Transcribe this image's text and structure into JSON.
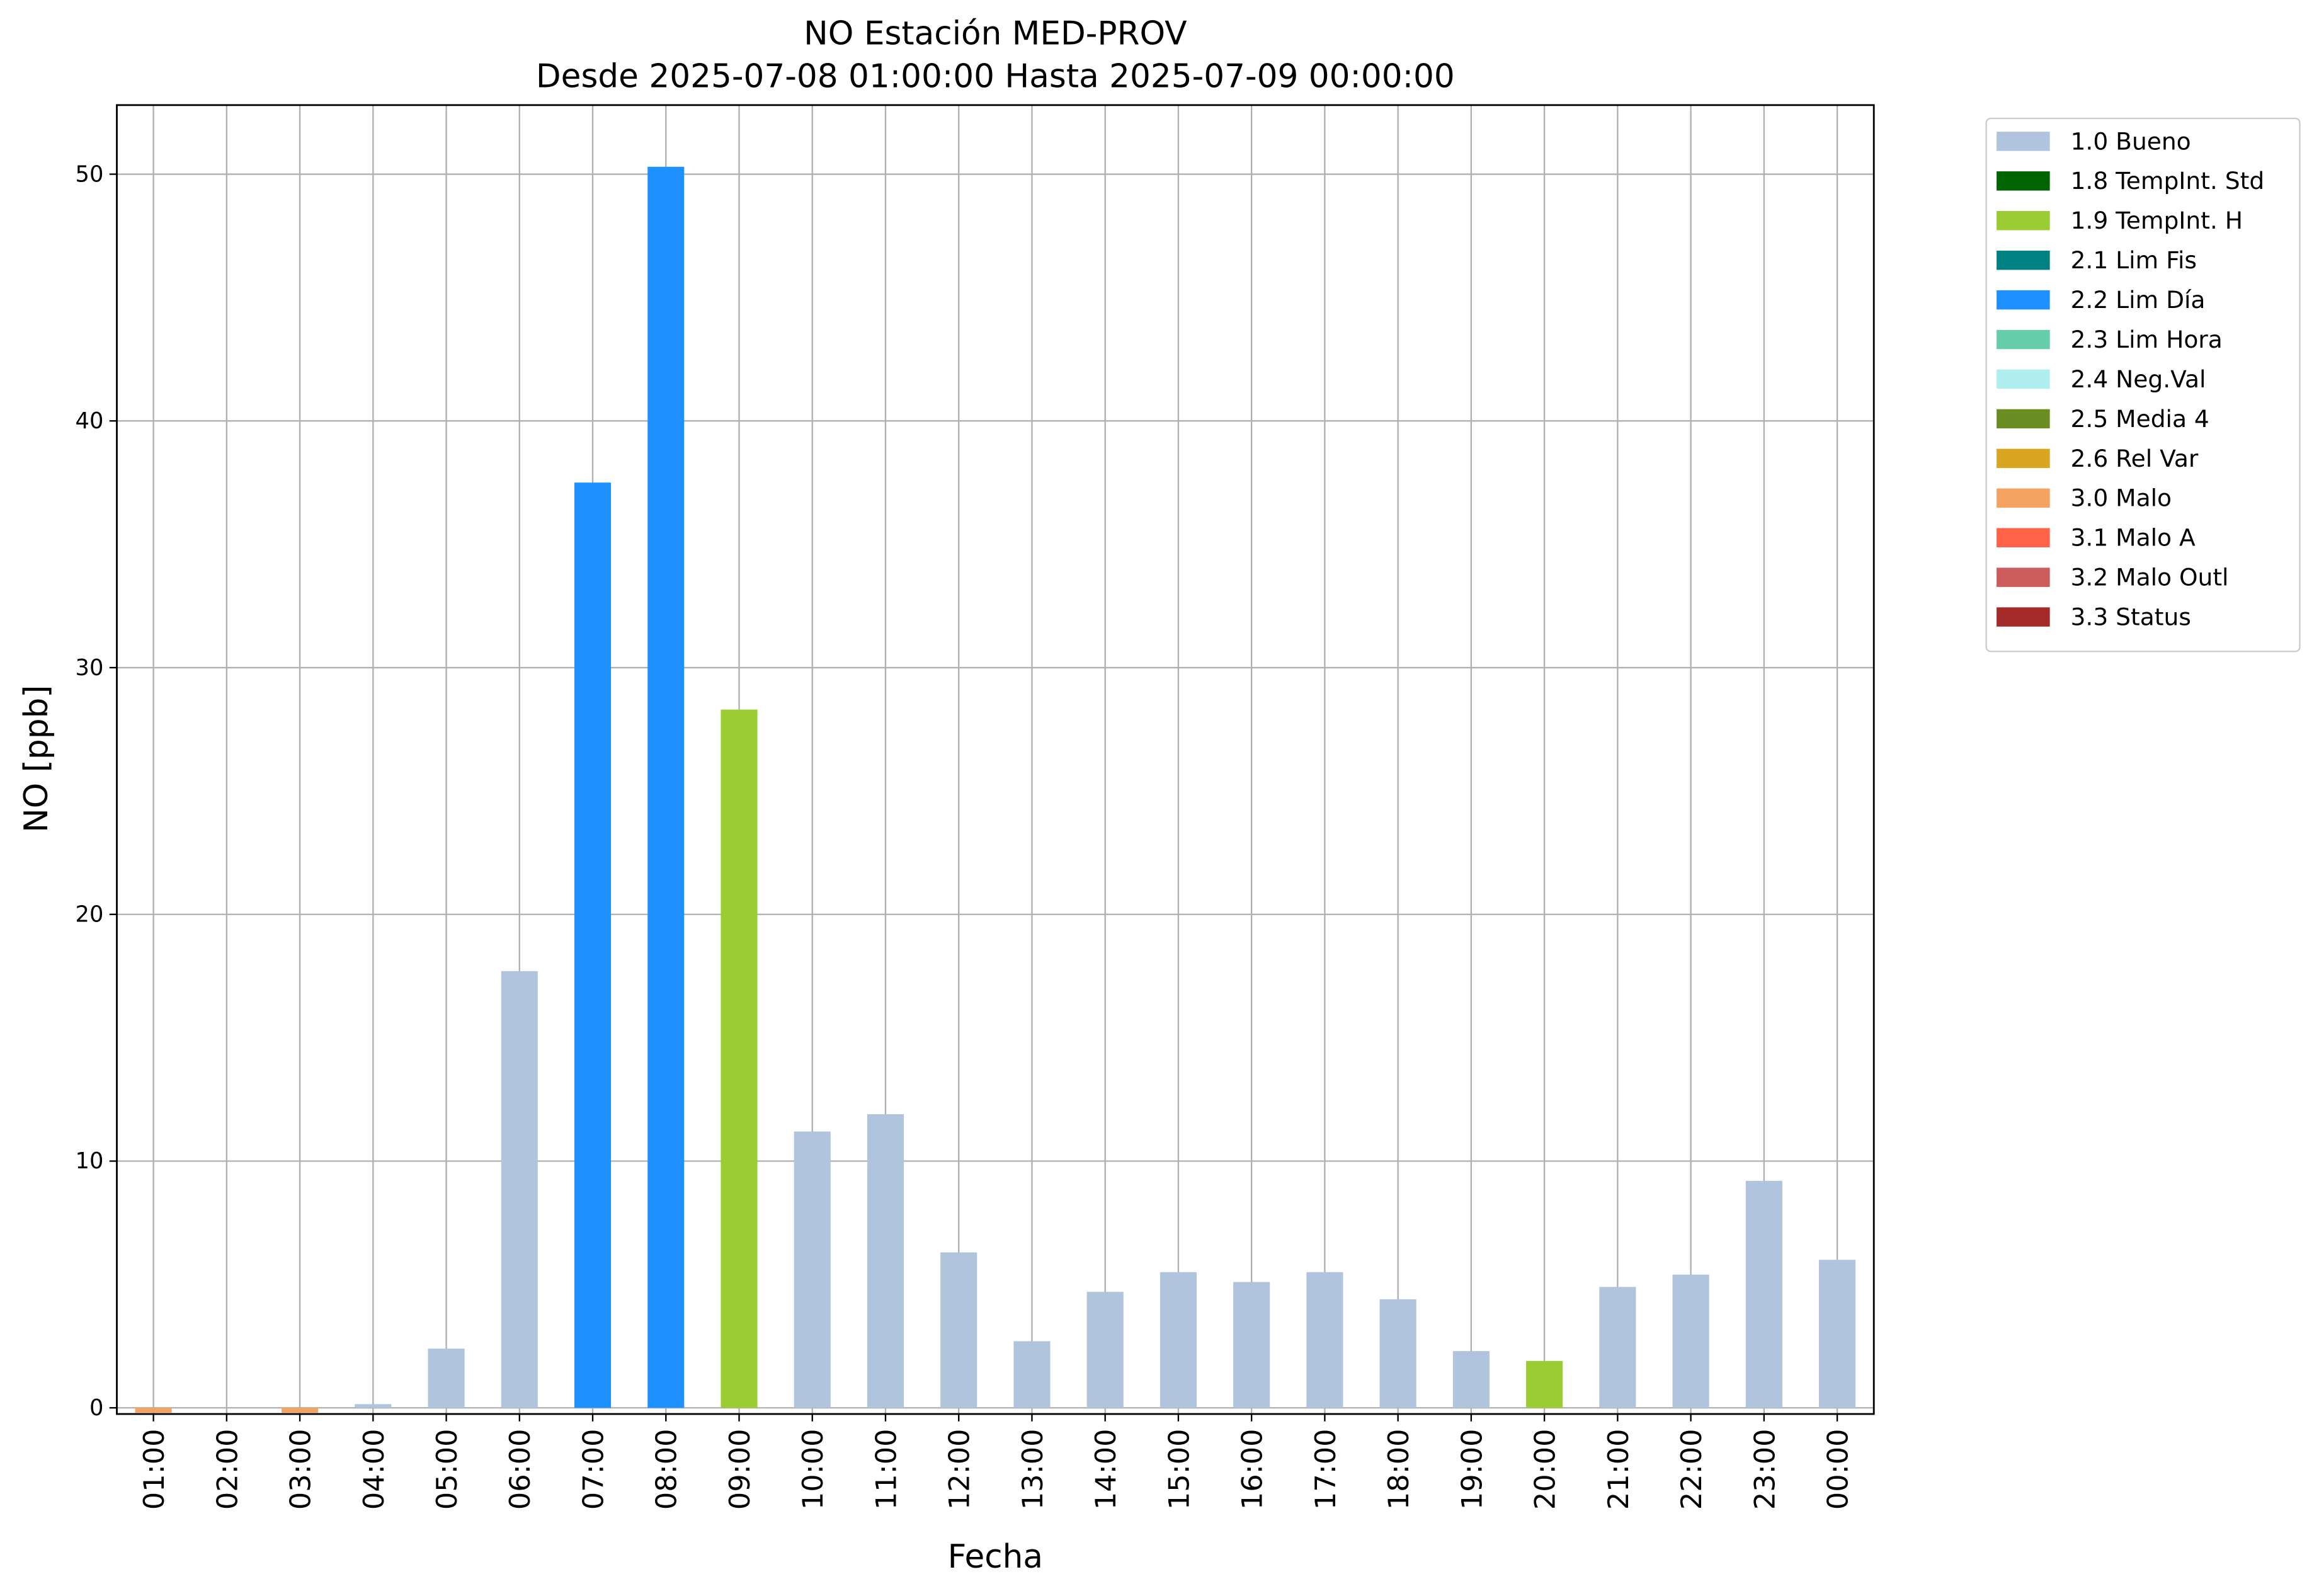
{
  "chart_data": {
    "type": "bar",
    "title": "NO Estación MED-PROV",
    "subtitle": "Desde 2025-07-08 01:00:00 Hasta 2025-07-09 00:00:00",
    "x_label": "Fecha",
    "y_label": "NO [ppb]",
    "categories": [
      "01:00",
      "02:00",
      "03:00",
      "04:00",
      "05:00",
      "06:00",
      "07:00",
      "08:00",
      "09:00",
      "10:00",
      "11:00",
      "12:00",
      "13:00",
      "14:00",
      "15:00",
      "16:00",
      "17:00",
      "18:00",
      "19:00",
      "20:00",
      "21:00",
      "22:00",
      "23:00",
      "00:00"
    ],
    "series": [
      {
        "name": "1.0 Bueno",
        "color": "#b0c4de",
        "values": [
          null,
          null,
          null,
          0.15,
          2.4,
          17.7,
          null,
          null,
          null,
          11.2,
          11.9,
          6.3,
          2.7,
          4.7,
          5.5,
          5.1,
          5.5,
          4.4,
          2.3,
          null,
          4.9,
          5.4,
          9.2,
          6.0
        ]
      },
      {
        "name": "1.8 TempInt. Std",
        "color": "#006400",
        "values": [
          null,
          null,
          null,
          null,
          null,
          null,
          null,
          null,
          null,
          null,
          null,
          null,
          null,
          null,
          null,
          null,
          null,
          null,
          null,
          null,
          null,
          null,
          null,
          null
        ]
      },
      {
        "name": "1.9 TempInt. H",
        "color": "#9acd32",
        "values": [
          null,
          null,
          null,
          null,
          null,
          null,
          null,
          null,
          28.3,
          null,
          null,
          null,
          null,
          null,
          null,
          null,
          null,
          null,
          null,
          1.9,
          null,
          null,
          null,
          null
        ]
      },
      {
        "name": "2.1 Lim Fis",
        "color": "#008080",
        "values": [
          null,
          null,
          null,
          null,
          null,
          null,
          null,
          null,
          null,
          null,
          null,
          null,
          null,
          null,
          null,
          null,
          null,
          null,
          null,
          null,
          null,
          null,
          null,
          null
        ]
      },
      {
        "name": "2.2 Lim Día",
        "color": "#1e90ff",
        "values": [
          null,
          null,
          null,
          null,
          null,
          null,
          37.5,
          50.3,
          null,
          null,
          null,
          null,
          null,
          null,
          null,
          null,
          null,
          null,
          null,
          null,
          null,
          null,
          null,
          null
        ]
      },
      {
        "name": "2.3 Lim Hora",
        "color": "#66cdaa",
        "values": [
          null,
          null,
          null,
          null,
          null,
          null,
          null,
          null,
          null,
          null,
          null,
          null,
          null,
          null,
          null,
          null,
          null,
          null,
          null,
          null,
          null,
          null,
          null,
          null
        ]
      },
      {
        "name": "2.4 Neg.Val",
        "color": "#afeeee",
        "values": [
          null,
          null,
          null,
          null,
          null,
          null,
          null,
          null,
          null,
          null,
          null,
          null,
          null,
          null,
          null,
          null,
          null,
          null,
          null,
          null,
          null,
          null,
          null,
          null
        ]
      },
      {
        "name": "2.5 Media 4",
        "color": "#6b8e23",
        "values": [
          null,
          null,
          null,
          null,
          null,
          null,
          null,
          null,
          null,
          null,
          null,
          null,
          null,
          null,
          null,
          null,
          null,
          null,
          null,
          null,
          null,
          null,
          null,
          null
        ]
      },
      {
        "name": "2.6 Rel Var",
        "color": "#daa520",
        "values": [
          null,
          null,
          null,
          null,
          null,
          null,
          null,
          null,
          null,
          null,
          null,
          null,
          null,
          null,
          null,
          null,
          null,
          null,
          null,
          null,
          null,
          null,
          null,
          null
        ]
      },
      {
        "name": "3.0 Malo",
        "color": "#f4a460",
        "values": [
          -0.2,
          null,
          -0.2,
          null,
          null,
          null,
          null,
          null,
          null,
          null,
          null,
          null,
          null,
          null,
          null,
          null,
          null,
          null,
          null,
          null,
          null,
          null,
          null,
          null
        ]
      },
      {
        "name": "3.1 Malo A",
        "color": "#ff6347",
        "values": [
          null,
          null,
          null,
          null,
          null,
          null,
          null,
          null,
          null,
          null,
          null,
          null,
          null,
          null,
          null,
          null,
          null,
          null,
          null,
          null,
          null,
          null,
          null,
          null
        ]
      },
      {
        "name": "3.2 Malo Outl",
        "color": "#cd5c5c",
        "values": [
          null,
          null,
          null,
          null,
          null,
          null,
          null,
          null,
          null,
          null,
          null,
          null,
          null,
          null,
          null,
          null,
          null,
          null,
          null,
          null,
          null,
          null,
          null,
          null
        ]
      },
      {
        "name": "3.3 Status",
        "color": "#a52a2a",
        "values": [
          null,
          null,
          null,
          null,
          null,
          null,
          null,
          null,
          null,
          null,
          null,
          null,
          null,
          null,
          null,
          null,
          null,
          null,
          null,
          null,
          null,
          null,
          null,
          null
        ]
      }
    ],
    "ylim": [
      -0.25,
      52.8
    ],
    "yticks": [
      0,
      10,
      20,
      30,
      40,
      50
    ],
    "grid": true,
    "legend": "outside upper right"
  }
}
